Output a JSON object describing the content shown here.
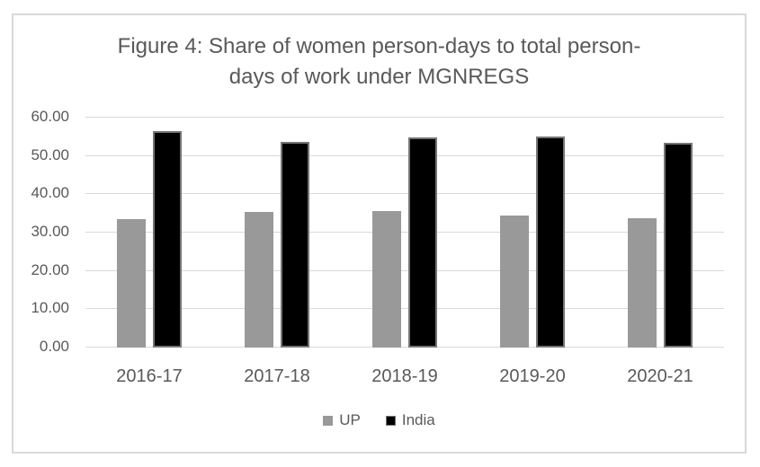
{
  "figure": {
    "background": "#ffffff",
    "frame_border_color": "#d9d9d9",
    "text_color": "#595959"
  },
  "chart_data": {
    "type": "bar",
    "title": "Figure 4: Share of women person-days to total person-days of work under MGNREGS",
    "title_lines": [
      "Figure 4: Share of women person-days to total person-",
      "days of work under MGNREGS"
    ],
    "categories": [
      "2016-17",
      "2017-18",
      "2018-19",
      "2019-20",
      "2020-21"
    ],
    "series": [
      {
        "name": "UP",
        "color": "#999999",
        "border_color": "#999999",
        "values": [
          33.2,
          35.1,
          35.4,
          34.3,
          33.6
        ]
      },
      {
        "name": "India",
        "color": "#000000",
        "border_color": "#757575",
        "values": [
          56.2,
          53.4,
          54.6,
          54.8,
          53.2
        ]
      }
    ],
    "xlabel": "",
    "ylabel": "",
    "ylim": [
      0,
      60
    ],
    "ytick_step": 10,
    "ytick_labels": [
      "60.00",
      "50.00",
      "40.00",
      "30.00",
      "20.00",
      "10.00",
      "0.00"
    ],
    "grid": true,
    "gridline_color": "#d9d9d9",
    "legend_position": "bottom",
    "legend_labels": [
      "UP",
      "India"
    ]
  }
}
